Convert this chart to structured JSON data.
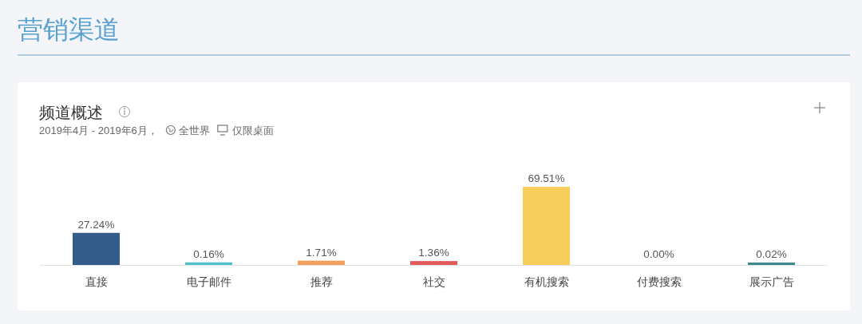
{
  "chart_data": {
    "type": "bar",
    "title": "营销渠道",
    "subtitle": "频道概述",
    "annotations": [
      "2019年4月 - 2019年6月，",
      "全世界",
      "仅限桌面"
    ],
    "categories": [
      "直接",
      "电子邮件",
      "推荐",
      "社交",
      "有机搜索",
      "付费搜索",
      "展示广告"
    ],
    "values": [
      27.24,
      0.16,
      1.71,
      1.36,
      69.51,
      0.0,
      0.02
    ],
    "value_labels": [
      "27.24%",
      "0.16%",
      "1.71%",
      "1.36%",
      "69.51%",
      "0.00%",
      "0.02%"
    ],
    "colors": [
      "#335c8a",
      "#4fbfc9",
      "#f0a05a",
      "#e05a5a",
      "#f7ce5b",
      "#5bc3d9",
      "#3a8a8a"
    ]
  }
}
